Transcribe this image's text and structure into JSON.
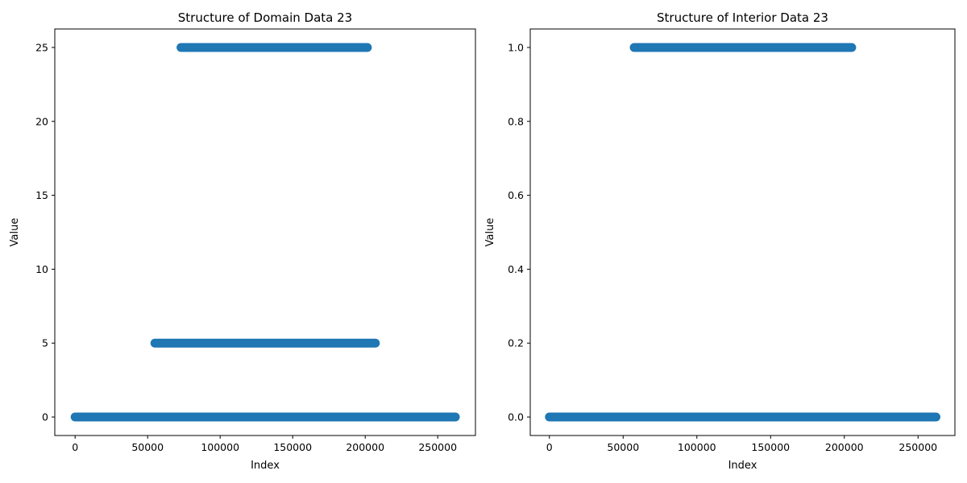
{
  "marker_color": "#1f77b4",
  "chart_data": [
    {
      "type": "scatter",
      "title": "Structure of Domain Data 23",
      "xlabel": "Index",
      "ylabel": "Value",
      "xlim": [
        -14000,
        276000
      ],
      "ylim": [
        -1.25,
        26.25
      ],
      "xticks": [
        0,
        50000,
        100000,
        150000,
        200000,
        250000
      ],
      "xtick_labels": [
        "0",
        "50000",
        "100000",
        "150000",
        "200000",
        "250000"
      ],
      "yticks": [
        0,
        5,
        10,
        15,
        20,
        25
      ],
      "ytick_labels": [
        "0",
        "5",
        "10",
        "15",
        "20",
        "25"
      ],
      "segments": [
        {
          "value": 0,
          "x_start": 0,
          "x_end": 262143
        },
        {
          "value": 5,
          "x_start": 55000,
          "x_end": 207000
        },
        {
          "value": 25,
          "x_start": 73000,
          "x_end": 201500
        }
      ]
    },
    {
      "type": "scatter",
      "title": "Structure of Interior Data 23",
      "xlabel": "Index",
      "ylabel": "Value",
      "xlim": [
        -13000,
        275000
      ],
      "ylim": [
        -0.05,
        1.05
      ],
      "xticks": [
        0,
        50000,
        100000,
        150000,
        200000,
        250000
      ],
      "xtick_labels": [
        "0",
        "50000",
        "100000",
        "150000",
        "200000",
        "250000"
      ],
      "yticks": [
        0,
        0.2,
        0.4,
        0.6,
        0.8,
        1.0
      ],
      "ytick_labels": [
        "0.0",
        "0.2",
        "0.4",
        "0.6",
        "0.8",
        "1.0"
      ],
      "segments": [
        {
          "value": 0,
          "x_start": 0,
          "x_end": 262143
        },
        {
          "value": 1,
          "x_start": 57500,
          "x_end": 205000
        }
      ]
    }
  ]
}
